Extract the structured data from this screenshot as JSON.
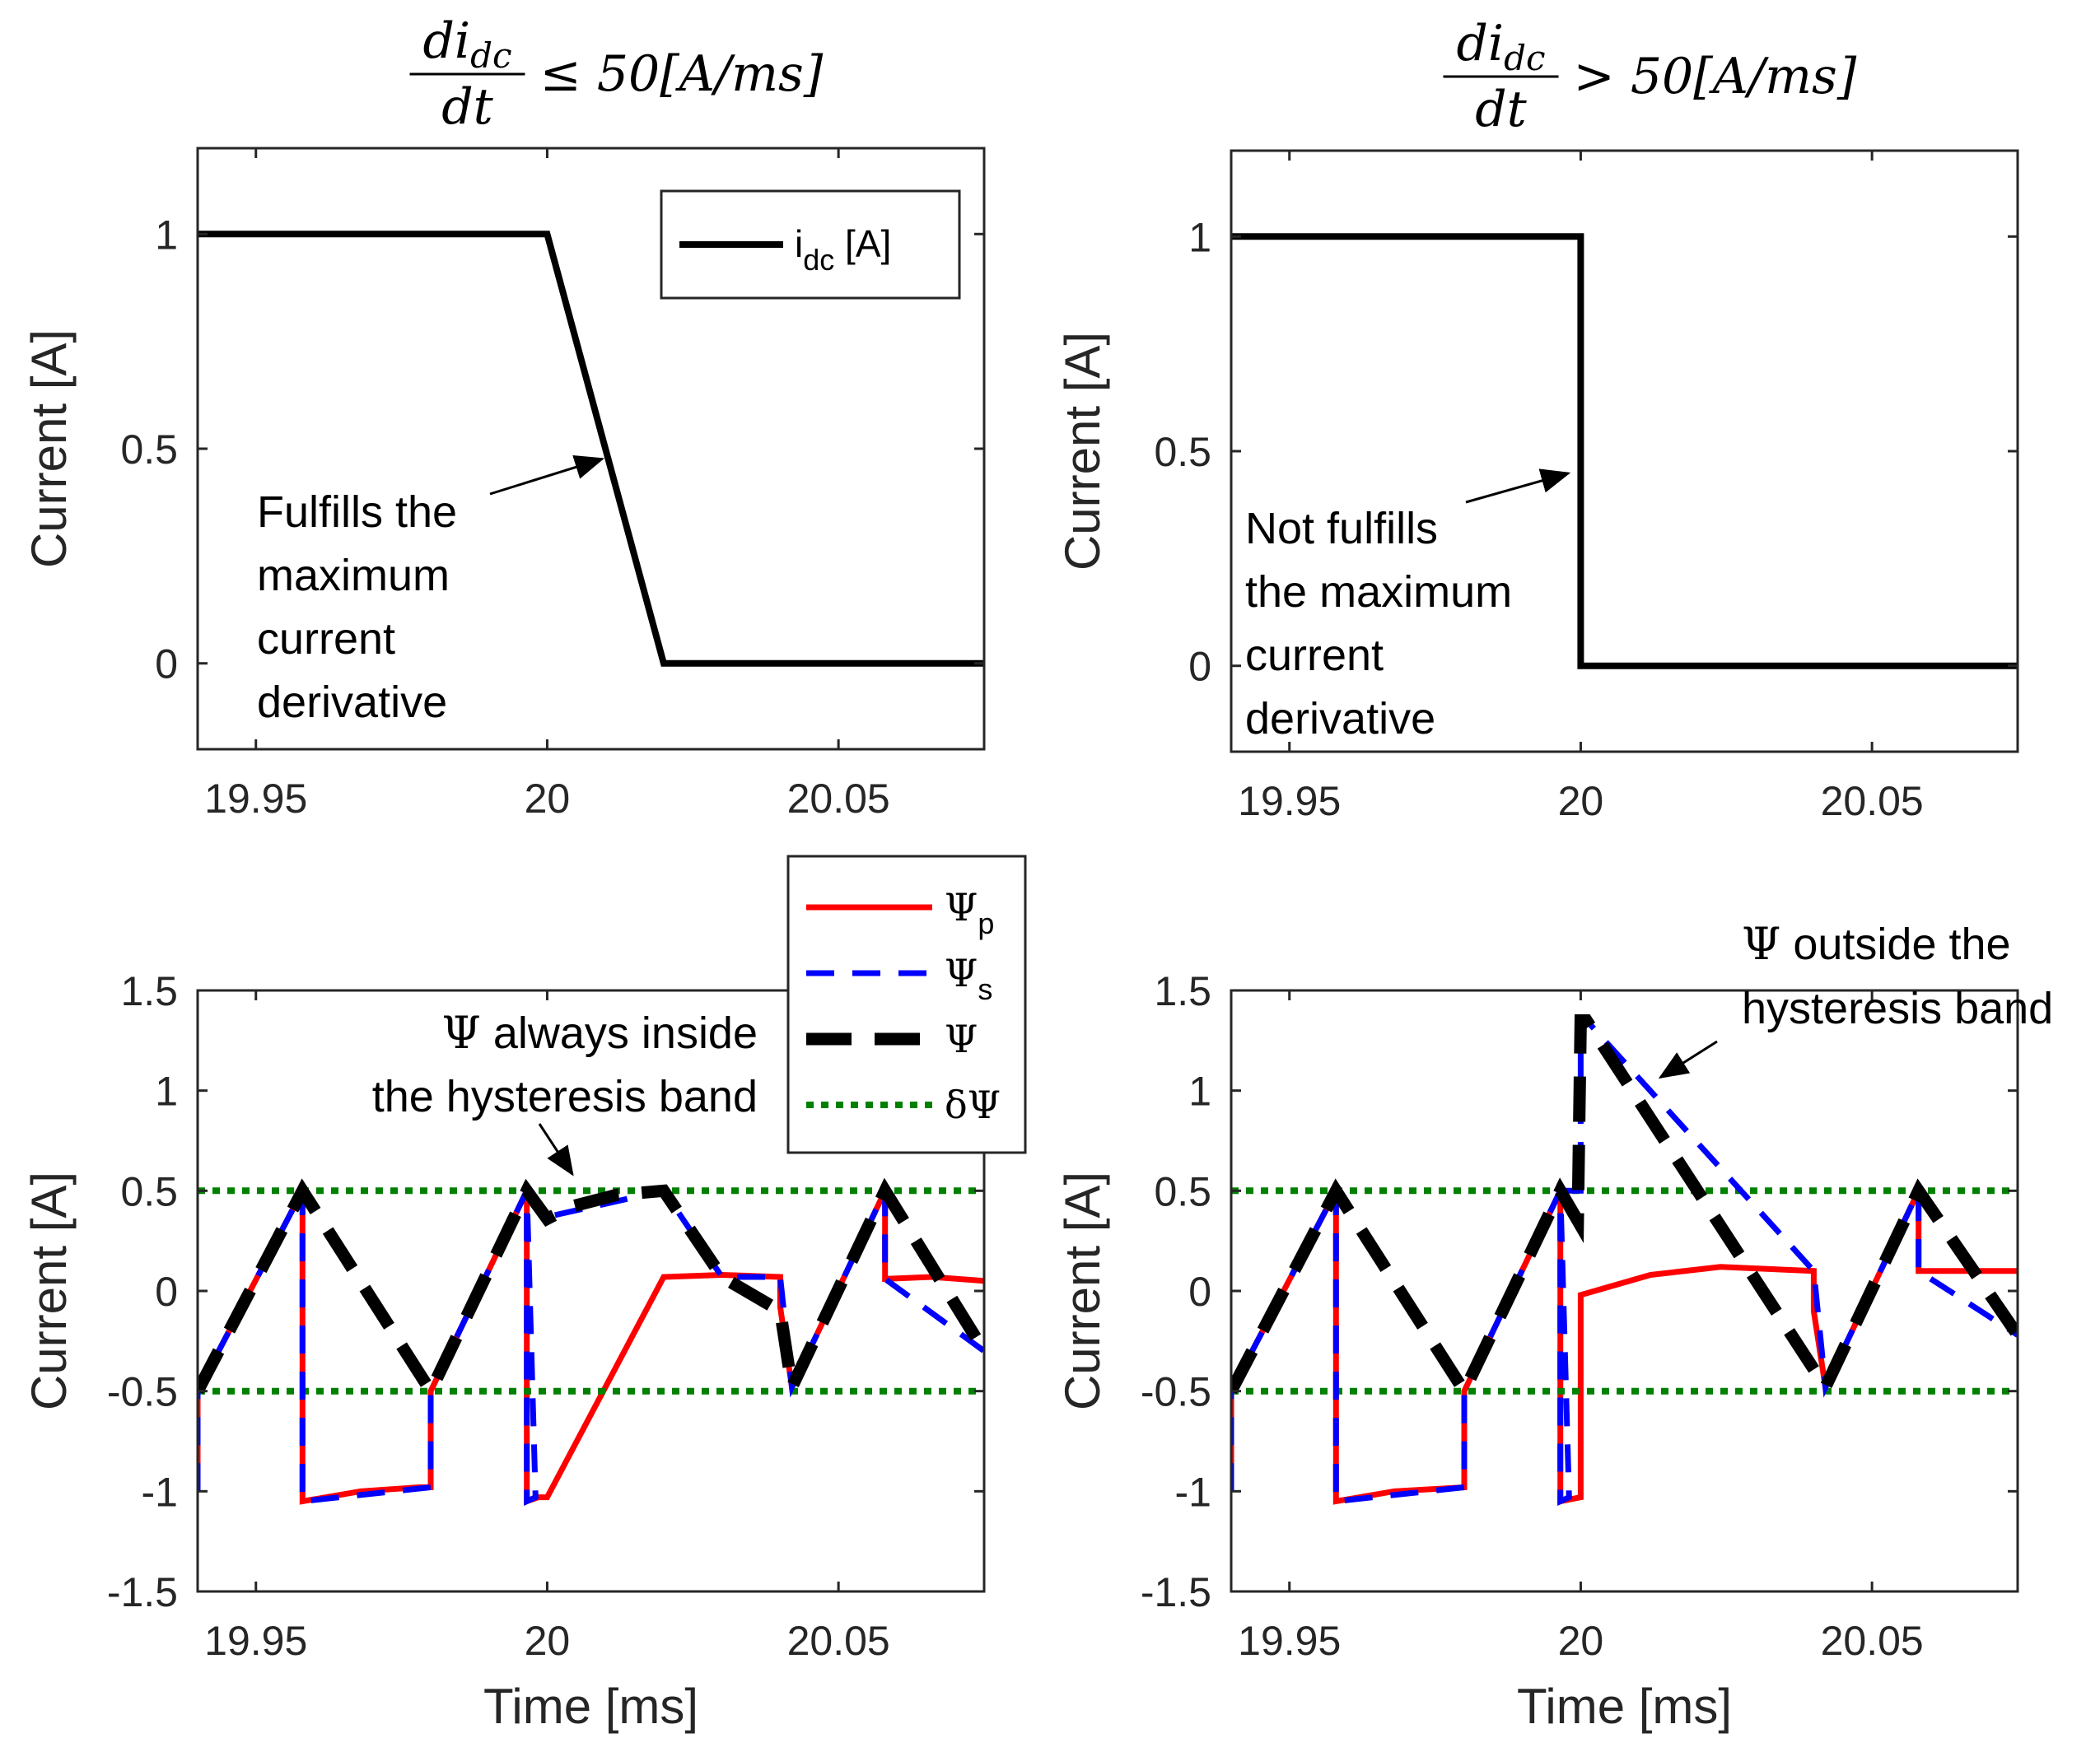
{
  "chart_data": [
    {
      "id": "top-left",
      "type": "line",
      "title": {
        "numerator": "di",
        "numerator_sub": "dc",
        "denominator": "dt",
        "relation": "≤ 50[A/ms]"
      },
      "xlabel": "",
      "ylabel": "Current [A]",
      "xlim": [
        19.94,
        20.075
      ],
      "ylim": [
        -0.2,
        1.2
      ],
      "xticks": [
        19.95,
        20,
        20.05
      ],
      "xtick_labels": [
        "19.95",
        "20",
        "20.05"
      ],
      "yticks": [
        0,
        0.5,
        1
      ],
      "ytick_labels": [
        "0",
        "0.5",
        "1"
      ],
      "legend": {
        "position": "top-right",
        "label": "i",
        "label_sub": "dc",
        "label_tail": " [A]"
      },
      "series": [
        {
          "name": "i_dc [A]",
          "color": "#000000",
          "x": [
            19.94,
            20.0,
            20.02,
            20.075
          ],
          "y": [
            1,
            1,
            0,
            0
          ]
        }
      ],
      "annotation": {
        "lines": [
          "Fulfills the",
          "maximum",
          "current",
          "derivative"
        ],
        "arrow_to": [
          20.01,
          0.48
        ]
      }
    },
    {
      "id": "top-right",
      "type": "line",
      "title": {
        "numerator": "di",
        "numerator_sub": "dc",
        "denominator": "dt",
        "relation": "> 50[A/ms]"
      },
      "xlabel": "",
      "ylabel": "Current [A]",
      "xlim": [
        19.94,
        20.075
      ],
      "ylim": [
        -0.2,
        1.2
      ],
      "xticks": [
        19.95,
        20,
        20.05
      ],
      "xtick_labels": [
        "19.95",
        "20",
        "20.05"
      ],
      "yticks": [
        0,
        0.5,
        1
      ],
      "ytick_labels": [
        "0",
        "0.5",
        "1"
      ],
      "series": [
        {
          "name": "i_dc [A]",
          "color": "#000000",
          "x": [
            19.94,
            20.0,
            20.0,
            20.075
          ],
          "y": [
            1,
            1,
            0,
            0
          ]
        }
      ],
      "annotation": {
        "lines": [
          "Not fulfills",
          "the maximum",
          "current",
          "derivative"
        ],
        "arrow_to": [
          19.999,
          0.46
        ]
      }
    },
    {
      "id": "bottom-left",
      "type": "line",
      "xlabel": "Time [ms]",
      "ylabel": "Current [A]",
      "xlim": [
        19.94,
        20.075
      ],
      "ylim": [
        -1.5,
        1.5
      ],
      "xticks": [
        19.95,
        20,
        20.05
      ],
      "xtick_labels": [
        "19.95",
        "20",
        "20.05"
      ],
      "yticks": [
        -1.5,
        -1,
        -0.5,
        0,
        0.5,
        1,
        1.5
      ],
      "ytick_labels": [
        "-1.5",
        "-1",
        "-0.5",
        "0",
        "0.5",
        "1",
        "1.5"
      ],
      "legend": {
        "position": "top-right",
        "entries": [
          {
            "symbol": "Ψ",
            "sub": "p",
            "style": "solid-red"
          },
          {
            "symbol": "Ψ",
            "sub": "s",
            "style": "dashed-blue"
          },
          {
            "symbol": "Ψ",
            "sub": "",
            "style": "dashed-black"
          },
          {
            "symbol": "δΨ",
            "sub": "",
            "style": "dotted-green"
          }
        ]
      },
      "series": [
        {
          "name": "Ψp",
          "color": "#ff0000",
          "x": [
            19.94,
            19.94,
            19.958,
            19.958,
            19.968,
            19.978,
            19.98,
            19.98,
            19.9965,
            19.9965,
            19.9985,
            20.0,
            20.02,
            20.03,
            20.04,
            20.04,
            20.042,
            20.058,
            20.058,
            20.066,
            20.075
          ],
          "y": [
            -1.0,
            -0.5,
            0.5,
            -1.05,
            -1.0,
            -0.98,
            -0.98,
            -0.5,
            0.5,
            -1.05,
            -1.03,
            -1.03,
            0.07,
            0.08,
            0.07,
            -0.08,
            -0.48,
            0.5,
            0.06,
            0.07,
            0.05
          ]
        },
        {
          "name": "Ψs",
          "color": "#0000ff",
          "x": [
            19.94,
            19.94,
            19.958,
            19.958,
            19.98,
            19.98,
            19.9965,
            19.9965,
            19.998,
            19.9965,
            20.0,
            20.02,
            20.03,
            20.04,
            20.042,
            20.058,
            20.058,
            20.075
          ],
          "y": [
            -1.0,
            -0.5,
            0.5,
            -1.05,
            -0.98,
            -0.5,
            0.5,
            -1.05,
            -1.03,
            0.5,
            0.37,
            0.5,
            0.07,
            0.07,
            -0.48,
            0.5,
            0.06,
            -0.3
          ]
        },
        {
          "name": "Ψ",
          "color": "#000000",
          "x": [
            19.94,
            19.958,
            19.98,
            19.9965,
            20.0,
            20.004,
            20.012,
            20.02,
            20.03,
            20.04,
            20.042,
            20.058,
            20.075
          ],
          "y": [
            -0.5,
            0.5,
            -0.5,
            0.5,
            0.36,
            0.42,
            0.48,
            0.5,
            0.07,
            -0.1,
            -0.48,
            0.5,
            -0.3
          ]
        },
        {
          "name": "δΨ upper",
          "color": "#008000",
          "x": [
            19.94,
            20.075
          ],
          "y": [
            0.5,
            0.5
          ]
        },
        {
          "name": "δΨ lower",
          "color": "#008000",
          "x": [
            19.94,
            20.075
          ],
          "y": [
            -0.5,
            -0.5
          ]
        }
      ],
      "annotation": {
        "symbol": "Ψ",
        "line1_tail": " always inside",
        "line2": "the hysteresis band",
        "arrow_to": [
          20.0015,
          0.55
        ]
      }
    },
    {
      "id": "bottom-right",
      "type": "line",
      "xlabel": "Time [ms]",
      "ylabel": "Current [A]",
      "xlim": [
        19.94,
        20.075
      ],
      "ylim": [
        -1.5,
        1.5
      ],
      "xticks": [
        19.95,
        20,
        20.05
      ],
      "xtick_labels": [
        "19.95",
        "20",
        "20.05"
      ],
      "yticks": [
        -1.5,
        -1,
        -0.5,
        0,
        0.5,
        1,
        1.5
      ],
      "ytick_labels": [
        "-1.5",
        "-1",
        "-0.5",
        "0",
        "0.5",
        "1",
        "1.5"
      ],
      "series": [
        {
          "name": "Ψp",
          "color": "#ff0000",
          "x": [
            19.94,
            19.94,
            19.958,
            19.958,
            19.968,
            19.98,
            19.98,
            19.9965,
            19.9965,
            20.0,
            20.0,
            20.012,
            20.024,
            20.04,
            20.04,
            20.042,
            20.058,
            20.058,
            20.075
          ],
          "y": [
            -1.0,
            -0.5,
            0.5,
            -1.05,
            -1.0,
            -0.98,
            -0.5,
            0.5,
            -1.05,
            -1.03,
            -0.02,
            0.08,
            0.12,
            0.1,
            -0.1,
            -0.48,
            0.5,
            0.1,
            0.1
          ]
        },
        {
          "name": "Ψs",
          "color": "#0000ff",
          "x": [
            19.94,
            19.94,
            19.958,
            19.958,
            19.98,
            19.98,
            19.9965,
            19.9965,
            19.998,
            19.9965,
            20.0,
            20.0,
            20.001,
            20.04,
            20.04,
            20.042,
            20.058,
            20.058,
            20.075
          ],
          "y": [
            -1.0,
            -0.5,
            0.5,
            -1.05,
            -0.98,
            -0.5,
            0.5,
            -1.05,
            -1.03,
            0.5,
            0.5,
            1.35,
            1.35,
            0.1,
            0.1,
            -0.48,
            0.5,
            0.1,
            -0.22
          ]
        },
        {
          "name": "Ψ",
          "color": "#000000",
          "x": [
            19.94,
            19.958,
            19.98,
            19.9965,
            19.9995,
            20.0,
            20.001,
            20.042,
            20.058,
            20.075
          ],
          "y": [
            -0.5,
            0.5,
            -0.5,
            0.5,
            0.35,
            1.35,
            1.35,
            -0.48,
            0.5,
            -0.22
          ]
        },
        {
          "name": "δΨ upper",
          "color": "#008000",
          "x": [
            19.94,
            20.075
          ],
          "y": [
            0.5,
            0.5
          ]
        },
        {
          "name": "δΨ lower",
          "color": "#008000",
          "x": [
            19.94,
            20.075
          ],
          "y": [
            -0.5,
            -0.5
          ]
        }
      ],
      "annotation": {
        "symbol": "Ψ",
        "line1_tail": " outside the",
        "line2": "hysteresis band",
        "arrow_to": [
          20.012,
          1.05
        ]
      }
    }
  ]
}
